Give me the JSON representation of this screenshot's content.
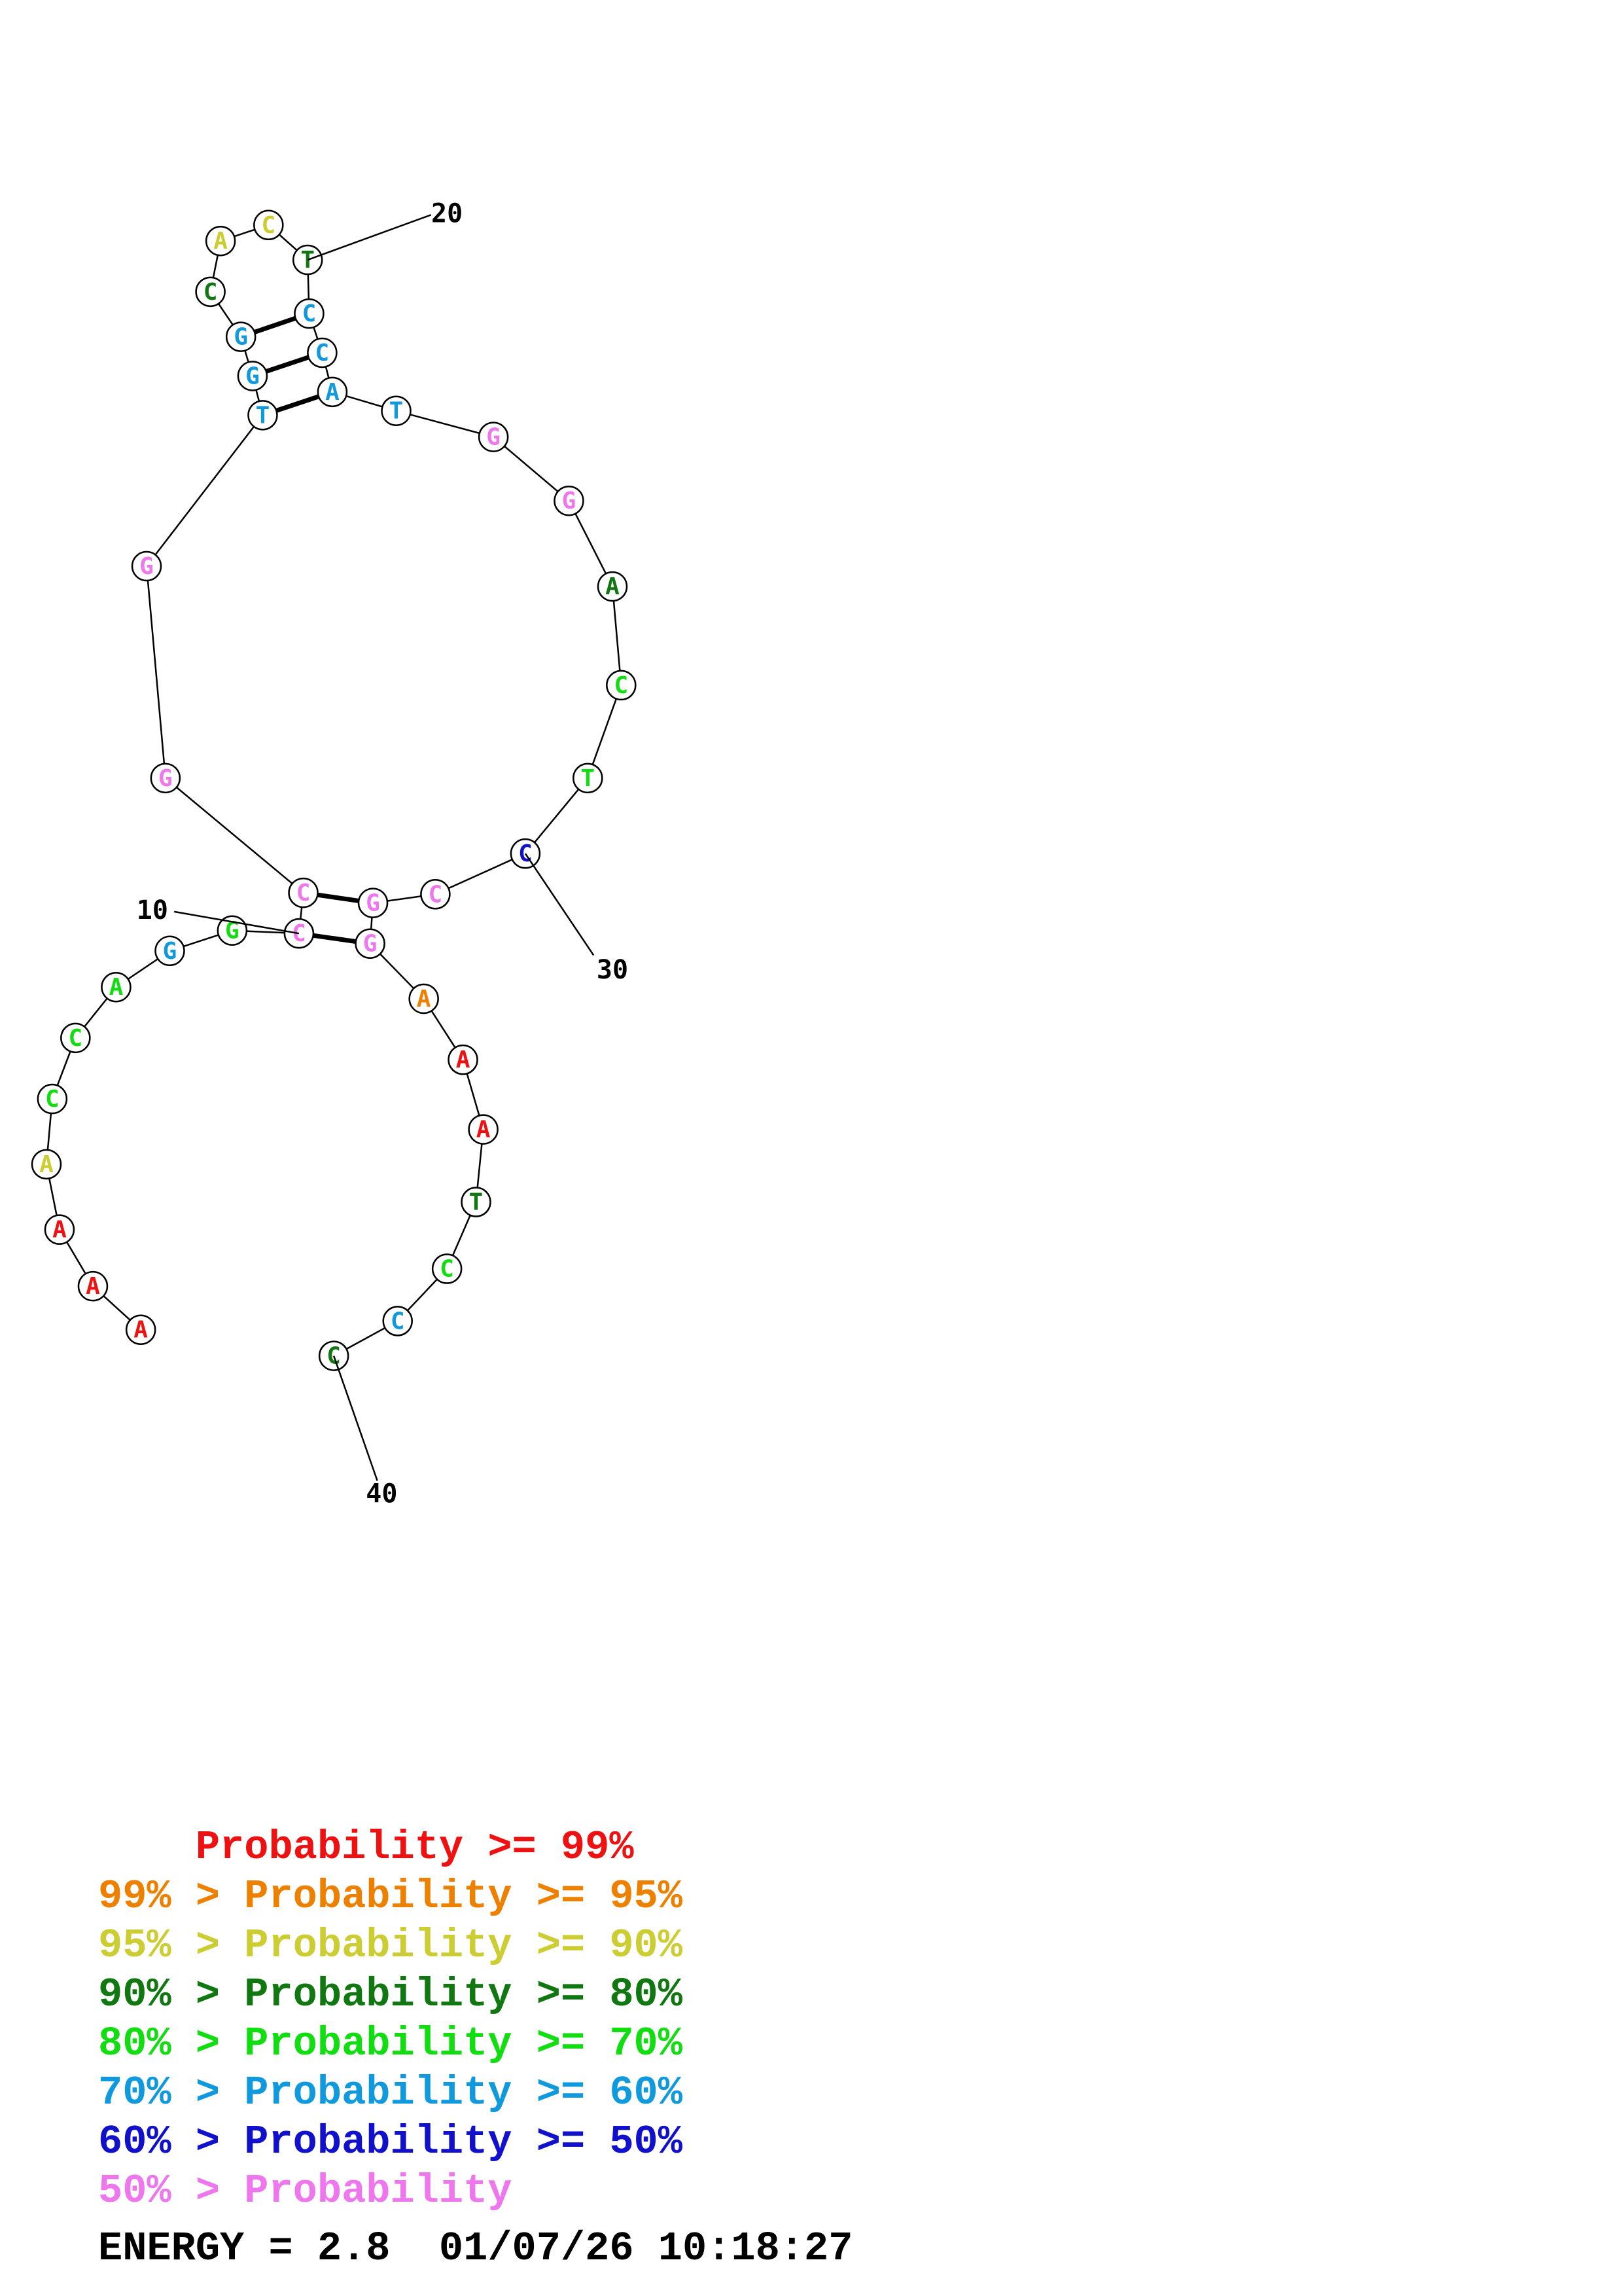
{
  "colors": {
    "red": "#ee1111",
    "orange": "#ee8000",
    "yellow": "#cccc33",
    "dkgreen": "#117711",
    "green": "#11dd11",
    "cyan": "#1199dd",
    "blue": "#1111cc",
    "pink": "#ee77ee"
  },
  "nucleotides": [
    {
      "i": 1,
      "base": "A",
      "color": "red"
    },
    {
      "i": 2,
      "base": "A",
      "color": "red"
    },
    {
      "i": 3,
      "base": "A",
      "color": "red"
    },
    {
      "i": 4,
      "base": "A",
      "color": "yellow"
    },
    {
      "i": 5,
      "base": "C",
      "color": "green"
    },
    {
      "i": 6,
      "base": "C",
      "color": "green"
    },
    {
      "i": 7,
      "base": "A",
      "color": "green"
    },
    {
      "i": 8,
      "base": "G",
      "color": "cyan"
    },
    {
      "i": 9,
      "base": "G",
      "color": "green"
    },
    {
      "i": 10,
      "base": "C",
      "color": "pink"
    },
    {
      "i": 11,
      "base": "C",
      "color": "pink"
    },
    {
      "i": 12,
      "base": "G",
      "color": "pink"
    },
    {
      "i": 13,
      "base": "G",
      "color": "pink"
    },
    {
      "i": 14,
      "base": "T",
      "color": "cyan"
    },
    {
      "i": 15,
      "base": "G",
      "color": "cyan"
    },
    {
      "i": 16,
      "base": "G",
      "color": "cyan"
    },
    {
      "i": 17,
      "base": "C",
      "color": "dkgreen"
    },
    {
      "i": 18,
      "base": "A",
      "color": "yellow"
    },
    {
      "i": 19,
      "base": "C",
      "color": "yellow"
    },
    {
      "i": 20,
      "base": "T",
      "color": "dkgreen"
    },
    {
      "i": 21,
      "base": "C",
      "color": "cyan"
    },
    {
      "i": 22,
      "base": "C",
      "color": "cyan"
    },
    {
      "i": 23,
      "base": "A",
      "color": "cyan"
    },
    {
      "i": 24,
      "base": "T",
      "color": "cyan"
    },
    {
      "i": 25,
      "base": "G",
      "color": "pink"
    },
    {
      "i": 26,
      "base": "G",
      "color": "pink"
    },
    {
      "i": 27,
      "base": "A",
      "color": "dkgreen"
    },
    {
      "i": 28,
      "base": "C",
      "color": "green"
    },
    {
      "i": 29,
      "base": "T",
      "color": "green"
    },
    {
      "i": 30,
      "base": "C",
      "color": "blue"
    },
    {
      "i": 31,
      "base": "C",
      "color": "pink"
    },
    {
      "i": 32,
      "base": "G",
      "color": "pink"
    },
    {
      "i": 33,
      "base": "G",
      "color": "pink"
    },
    {
      "i": 34,
      "base": "A",
      "color": "orange"
    },
    {
      "i": 35,
      "base": "A",
      "color": "red"
    },
    {
      "i": 36,
      "base": "A",
      "color": "red"
    },
    {
      "i": 37,
      "base": "T",
      "color": "dkgreen"
    },
    {
      "i": 38,
      "base": "C",
      "color": "green"
    },
    {
      "i": 39,
      "base": "C",
      "color": "cyan"
    },
    {
      "i": 40,
      "base": "C",
      "color": "dkgreen"
    }
  ],
  "pairs": [
    [
      10,
      33
    ],
    [
      11,
      32
    ],
    [
      14,
      23
    ],
    [
      15,
      22
    ],
    [
      16,
      21
    ]
  ],
  "position_labels": [
    {
      "text": "10",
      "nt": 10
    },
    {
      "text": "20",
      "nt": 20
    },
    {
      "text": "30",
      "nt": 30
    },
    {
      "text": "40",
      "nt": 40
    }
  ],
  "legend": [
    {
      "prefix": "    ",
      "label": "Probability",
      "suffix": " >= 99%",
      "color": "red"
    },
    {
      "prefix": "99% > ",
      "label": "Probability",
      "suffix": " >= 95%",
      "color": "orange"
    },
    {
      "prefix": "95% > ",
      "label": "Probability",
      "suffix": " >= 90%",
      "color": "yellow"
    },
    {
      "prefix": "90% > ",
      "label": "Probability",
      "suffix": " >= 80%",
      "color": "dkgreen"
    },
    {
      "prefix": "80% > ",
      "label": "Probability",
      "suffix": " >= 70%",
      "color": "green"
    },
    {
      "prefix": "70% > ",
      "label": "Probability",
      "suffix": " >= 60%",
      "color": "cyan"
    },
    {
      "prefix": "60% > ",
      "label": "Probability",
      "suffix": " >= 50%",
      "color": "blue"
    },
    {
      "prefix": "50% > ",
      "label": "Probability",
      "suffix": "",
      "color": "pink"
    }
  ],
  "energy": {
    "label": "ENERGY = 2.8",
    "timestamp": "01/07/26 10:18:27"
  }
}
